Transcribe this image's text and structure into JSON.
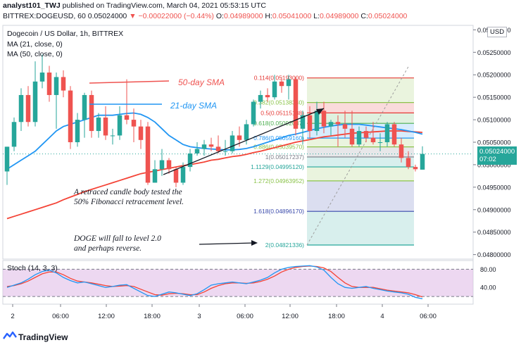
{
  "header": {
    "line1_author": "analyst101_TWJ",
    "line1_text": "published on TradingView.com, March 04, 2021 05:53:15 UTC",
    "symbol": "BITTREX:DOGEUSD, 60",
    "last": "0.05024000",
    "change": "▼ −0.00022000 (−0.44%)",
    "o_label": "O:",
    "o": "0.04989000",
    "h_label": "H:",
    "h": "0.05041000",
    "l_label": "L:",
    "l": "0.04989000",
    "c_label": "C:",
    "c": "0.05024000"
  },
  "legend": {
    "title": "Dogecoin / US Dollar, 1h, BITTREX",
    "ma21": "MA (21, close, 0)",
    "ma50": "MA (50, close, 0)",
    "stoch": "Stoch (14, 3, 3)"
  },
  "currency_badge": "USD",
  "price_tag": {
    "value": "0.05024000",
    "time": "07:02"
  },
  "annotations": {
    "sma50": "50-day SMA",
    "sma21": "21-day SMA",
    "retrace_line1": "A retraced candle body tested the",
    "retrace_line2": "50% Fibonacci retracement level.",
    "doge_line1": "DOGE will fall to level 2.0",
    "doge_line2": "and perhaps reverse."
  },
  "footer": {
    "brand": "TradingView"
  },
  "colors": {
    "up": "#26a69a",
    "down": "#ef5350",
    "ma21": "#2196f3",
    "ma50": "#f44336",
    "stoch_k": "#2196f3",
    "stoch_d": "#f44336",
    "stoch_band": "#e1bee7"
  },
  "chart_data": {
    "type": "candlestick",
    "title": "Dogecoin / US Dollar, 1h, BITTREX",
    "y_axis": {
      "range": [
        0.0479,
        0.0531
      ],
      "ticks": [
        "0.05300000",
        "0.05250000",
        "0.05200000",
        "0.05150000",
        "0.05100000",
        "0.05050000",
        "0.05000000",
        "0.04950000",
        "0.04900000",
        "0.04850000",
        "0.04800000"
      ]
    },
    "x_axis": {
      "ticks": [
        "2",
        "06:00",
        "12:00",
        "18:00",
        "3",
        "06:00",
        "12:00",
        "18:00",
        "4",
        "06:00"
      ]
    },
    "candles": [
      {
        "o": 0.04985,
        "h": 0.0504,
        "l": 0.04955,
        "c": 0.0504
      },
      {
        "o": 0.0504,
        "h": 0.05105,
        "l": 0.0503,
        "c": 0.05095
      },
      {
        "o": 0.05095,
        "h": 0.0517,
        "l": 0.05075,
        "c": 0.05155
      },
      {
        "o": 0.05155,
        "h": 0.05175,
        "l": 0.05085,
        "c": 0.05095
      },
      {
        "o": 0.05095,
        "h": 0.0523,
        "l": 0.05085,
        "c": 0.05185
      },
      {
        "o": 0.05185,
        "h": 0.05245,
        "l": 0.0517,
        "c": 0.05205
      },
      {
        "o": 0.05205,
        "h": 0.0522,
        "l": 0.0514,
        "c": 0.05155
      },
      {
        "o": 0.05155,
        "h": 0.05205,
        "l": 0.0508,
        "c": 0.05195
      },
      {
        "o": 0.05195,
        "h": 0.0521,
        "l": 0.0515,
        "c": 0.05165
      },
      {
        "o": 0.05165,
        "h": 0.05175,
        "l": 0.05035,
        "c": 0.0505
      },
      {
        "o": 0.0505,
        "h": 0.05115,
        "l": 0.0504,
        "c": 0.051
      },
      {
        "o": 0.051,
        "h": 0.0516,
        "l": 0.0506,
        "c": 0.05155
      },
      {
        "o": 0.05155,
        "h": 0.05165,
        "l": 0.0506,
        "c": 0.05075
      },
      {
        "o": 0.05075,
        "h": 0.05115,
        "l": 0.0506,
        "c": 0.05105
      },
      {
        "o": 0.05105,
        "h": 0.0513,
        "l": 0.05055,
        "c": 0.05065
      },
      {
        "o": 0.05065,
        "h": 0.0508,
        "l": 0.05045,
        "c": 0.05065
      },
      {
        "o": 0.05065,
        "h": 0.0513,
        "l": 0.05055,
        "c": 0.0511
      },
      {
        "o": 0.0511,
        "h": 0.0519,
        "l": 0.0509,
        "c": 0.051
      },
      {
        "o": 0.051,
        "h": 0.05125,
        "l": 0.0505,
        "c": 0.05085
      },
      {
        "o": 0.05085,
        "h": 0.051,
        "l": 0.05035,
        "c": 0.05055
      },
      {
        "o": 0.05085,
        "h": 0.05095,
        "l": 0.04955,
        "c": 0.0496
      },
      {
        "o": 0.0496,
        "h": 0.0501,
        "l": 0.0496,
        "c": 0.0499
      },
      {
        "o": 0.0499,
        "h": 0.05035,
        "l": 0.04975,
        "c": 0.0501
      },
      {
        "o": 0.0501,
        "h": 0.05015,
        "l": 0.0498,
        "c": 0.0499
      },
      {
        "o": 0.0499,
        "h": 0.04995,
        "l": 0.0495,
        "c": 0.0496
      },
      {
        "o": 0.0496,
        "h": 0.05005,
        "l": 0.04955,
        "c": 0.04995
      },
      {
        "o": 0.04995,
        "h": 0.05035,
        "l": 0.04985,
        "c": 0.05025
      },
      {
        "o": 0.05025,
        "h": 0.0505,
        "l": 0.0502,
        "c": 0.05035
      },
      {
        "o": 0.05035,
        "h": 0.05055,
        "l": 0.0502,
        "c": 0.05045
      },
      {
        "o": 0.05045,
        "h": 0.0506,
        "l": 0.0503,
        "c": 0.0504
      },
      {
        "o": 0.0504,
        "h": 0.05065,
        "l": 0.05025,
        "c": 0.0503
      },
      {
        "o": 0.0503,
        "h": 0.05055,
        "l": 0.0502,
        "c": 0.0503
      },
      {
        "o": 0.0503,
        "h": 0.05075,
        "l": 0.05025,
        "c": 0.05065
      },
      {
        "o": 0.05065,
        "h": 0.05085,
        "l": 0.0504,
        "c": 0.05055
      },
      {
        "o": 0.05055,
        "h": 0.051,
        "l": 0.05045,
        "c": 0.0509
      },
      {
        "o": 0.0509,
        "h": 0.05145,
        "l": 0.05085,
        "c": 0.0514
      },
      {
        "o": 0.0514,
        "h": 0.05165,
        "l": 0.05125,
        "c": 0.05155
      },
      {
        "o": 0.05155,
        "h": 0.0517,
        "l": 0.0514,
        "c": 0.0515
      },
      {
        "o": 0.0515,
        "h": 0.052,
        "l": 0.05145,
        "c": 0.05185
      },
      {
        "o": 0.05185,
        "h": 0.05195,
        "l": 0.0516,
        "c": 0.05175
      },
      {
        "o": 0.05175,
        "h": 0.052,
        "l": 0.05145,
        "c": 0.0519
      },
      {
        "o": 0.0519,
        "h": 0.05195,
        "l": 0.05065,
        "c": 0.0508
      },
      {
        "o": 0.0508,
        "h": 0.0512,
        "l": 0.05045,
        "c": 0.0511
      },
      {
        "o": 0.0511,
        "h": 0.0513,
        "l": 0.0506,
        "c": 0.05075
      },
      {
        "o": 0.05075,
        "h": 0.0514,
        "l": 0.05065,
        "c": 0.0512
      },
      {
        "o": 0.0512,
        "h": 0.0514,
        "l": 0.0507,
        "c": 0.05085
      },
      {
        "o": 0.05085,
        "h": 0.051,
        "l": 0.05065,
        "c": 0.05095
      },
      {
        "o": 0.05095,
        "h": 0.0511,
        "l": 0.0504,
        "c": 0.0509
      },
      {
        "o": 0.0509,
        "h": 0.0512,
        "l": 0.0506,
        "c": 0.0508
      },
      {
        "o": 0.0508,
        "h": 0.0512,
        "l": 0.0504,
        "c": 0.05045
      },
      {
        "o": 0.05045,
        "h": 0.05085,
        "l": 0.0504,
        "c": 0.05075
      },
      {
        "o": 0.05075,
        "h": 0.05085,
        "l": 0.0505,
        "c": 0.0506
      },
      {
        "o": 0.0506,
        "h": 0.05095,
        "l": 0.05045,
        "c": 0.0505
      },
      {
        "o": 0.0505,
        "h": 0.0507,
        "l": 0.0503,
        "c": 0.0505
      },
      {
        "o": 0.0505,
        "h": 0.05095,
        "l": 0.0504,
        "c": 0.0509
      },
      {
        "o": 0.0509,
        "h": 0.05095,
        "l": 0.0504,
        "c": 0.05045
      },
      {
        "o": 0.05045,
        "h": 0.0506,
        "l": 0.05005,
        "c": 0.05015
      },
      {
        "o": 0.05015,
        "h": 0.0503,
        "l": 0.0499,
        "c": 0.04995
      },
      {
        "o": 0.04995,
        "h": 0.05,
        "l": 0.04985,
        "c": 0.0499
      },
      {
        "o": 0.04989,
        "h": 0.05041,
        "l": 0.04989,
        "c": 0.05024
      }
    ],
    "ma21": [
      0.0499,
      0.05,
      0.0501,
      0.0502,
      0.0503,
      0.05045,
      0.0506,
      0.05075,
      0.05085,
      0.0509,
      0.05095,
      0.051,
      0.05105,
      0.0511,
      0.0511,
      0.0511,
      0.05112,
      0.05114,
      0.05115,
      0.05112,
      0.05105,
      0.05095,
      0.0508,
      0.05065,
      0.05055,
      0.05045,
      0.0504,
      0.05038,
      0.05036,
      0.05035,
      0.05034,
      0.05033,
      0.05033,
      0.05034,
      0.05036,
      0.0504,
      0.05045,
      0.0505,
      0.05055,
      0.0506,
      0.05065,
      0.05068,
      0.05072,
      0.05076,
      0.0508,
      0.05083,
      0.05086,
      0.05088,
      0.0509,
      0.0509,
      0.0509,
      0.05088,
      0.05086,
      0.05084,
      0.05082,
      0.0508,
      0.05078,
      0.05075,
      0.05072,
      0.05068
    ],
    "ma50": [
      0.0488,
      0.04885,
      0.0489,
      0.04895,
      0.049,
      0.04905,
      0.0491,
      0.04915,
      0.04922,
      0.04928,
      0.04934,
      0.0494,
      0.04945,
      0.0495,
      0.04955,
      0.0496,
      0.04965,
      0.0497,
      0.04975,
      0.0498,
      0.04983,
      0.04986,
      0.04989,
      0.04992,
      0.04995,
      0.04998,
      0.05,
      0.05003,
      0.05006,
      0.0501,
      0.05012,
      0.05015,
      0.05018,
      0.0502,
      0.05023,
      0.05027,
      0.0503,
      0.05034,
      0.05038,
      0.05042,
      0.05046,
      0.0505,
      0.05053,
      0.05056,
      0.05059,
      0.05062,
      0.05064,
      0.05066,
      0.05068,
      0.0507,
      0.05071,
      0.05072,
      0.05073,
      0.05074,
      0.05075,
      0.05075,
      0.05075,
      0.05074,
      0.05073,
      0.05072
    ],
    "fib_levels": [
      {
        "ratio": "0.114",
        "price": "0.05193000",
        "value": 0.05193,
        "color": "#e53935"
      },
      {
        "ratio": "0.382",
        "price": "0.05138340",
        "value": 0.051383,
        "color": "#8bc34a"
      },
      {
        "ratio": "0.5",
        "price": "0.05115188",
        "value": 0.051152,
        "color": "#e53935"
      },
      {
        "ratio": "0.618",
        "price": "0.05092037",
        "value": 0.05092,
        "color": "#4caf50"
      },
      {
        "ratio": "0.786",
        "price": "0.05059160",
        "value": 0.050592,
        "color": "#2196f3"
      },
      {
        "ratio": "0.886",
        "price": "0.05039570",
        "value": 0.050396,
        "color": "#8bc34a"
      },
      {
        "ratio": "1",
        "price": "0.05017237",
        "value": 0.050172,
        "color": "#787b86"
      },
      {
        "ratio": "1.1129",
        "price": "0.04995120",
        "value": 0.049951,
        "color": "#26a69a"
      },
      {
        "ratio": "1.272",
        "price": "0.04963952",
        "value": 0.04964,
        "color": "#8bc34a"
      },
      {
        "ratio": "1.618",
        "price": "0.04896170",
        "value": 0.048962,
        "color": "#3949ab"
      },
      {
        "ratio": "2",
        "price": "0.04821336",
        "value": 0.048213,
        "color": "#26a69a"
      }
    ],
    "stoch": {
      "y_ticks": [
        "80.00",
        "40.00"
      ],
      "k": [
        40,
        45,
        50,
        58,
        68,
        75,
        78,
        72,
        62,
        55,
        50,
        52,
        48,
        44,
        40,
        42,
        45,
        46,
        38,
        30,
        22,
        20,
        25,
        30,
        28,
        25,
        22,
        26,
        35,
        45,
        48,
        50,
        52,
        50,
        48,
        52,
        56,
        62,
        72,
        80,
        84,
        86,
        87,
        88,
        85,
        78,
        62,
        48,
        40,
        38,
        40,
        42,
        38,
        35,
        32,
        30,
        28,
        25,
        18,
        15
      ],
      "d": [
        42,
        44,
        48,
        54,
        62,
        70,
        74,
        74,
        68,
        60,
        54,
        52,
        50,
        47,
        44,
        42,
        43,
        44,
        42,
        36,
        30,
        24,
        23,
        26,
        27,
        26,
        24,
        24,
        30,
        38,
        44,
        48,
        50,
        50,
        49,
        50,
        53,
        58,
        65,
        74,
        80,
        84,
        86,
        87,
        86,
        83,
        75,
        62,
        50,
        42,
        40,
        40,
        40,
        37,
        34,
        32,
        30,
        28,
        24,
        19
      ]
    }
  }
}
